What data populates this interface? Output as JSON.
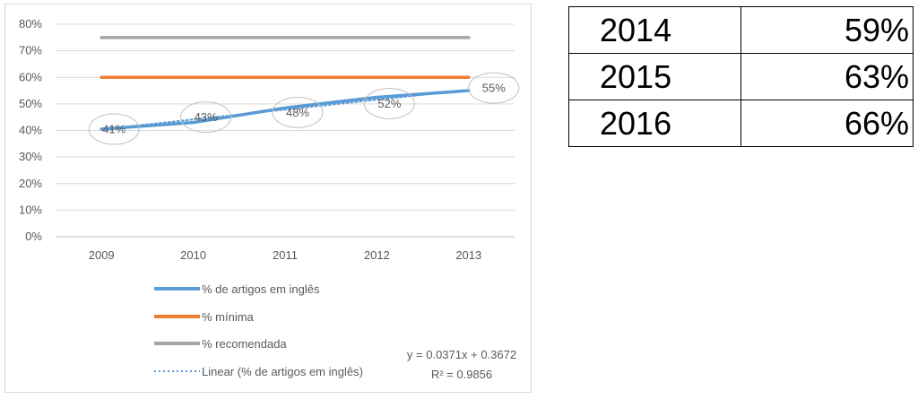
{
  "chart_data": {
    "type": "line",
    "categories": [
      "2009",
      "2010",
      "2011",
      "2012",
      "2013"
    ],
    "series": [
      {
        "name": "% de artigos em inglês",
        "values": [
          0.405,
          0.43,
          0.485,
          0.525,
          0.55
        ],
        "color": "#5b9bd5",
        "style": "solid"
      },
      {
        "name": "% mínima",
        "values": [
          0.6,
          0.6,
          0.6,
          0.6,
          0.6
        ],
        "color": "#ed7d31",
        "style": "solid"
      },
      {
        "name": "% recomendada",
        "values": [
          0.75,
          0.75,
          0.75,
          0.75,
          0.75
        ],
        "color": "#a5a5a5",
        "style": "solid"
      },
      {
        "name": "Linear (% de artigos em inglês)",
        "values": [
          0.4043,
          0.4414,
          0.4785,
          0.5156,
          0.5527
        ],
        "color": "#5b9bd5",
        "style": "dotted"
      }
    ],
    "data_labels": [
      "41%",
      "43%",
      "48%",
      "52%",
      "55%"
    ],
    "y_ticks": [
      "0%",
      "10%",
      "20%",
      "30%",
      "40%",
      "50%",
      "60%",
      "70%",
      "80%"
    ],
    "ylim": [
      0,
      0.8
    ],
    "grid": true,
    "legend_position": "bottom",
    "trendline_equation": "y = 0.0371x + 0.3672",
    "trendline_r2": "R² = 0.9856"
  },
  "projection_table": [
    {
      "year": "2014",
      "value": "59%"
    },
    {
      "year": "2015",
      "value": "63%"
    },
    {
      "year": "2016",
      "value": "66%"
    }
  ]
}
